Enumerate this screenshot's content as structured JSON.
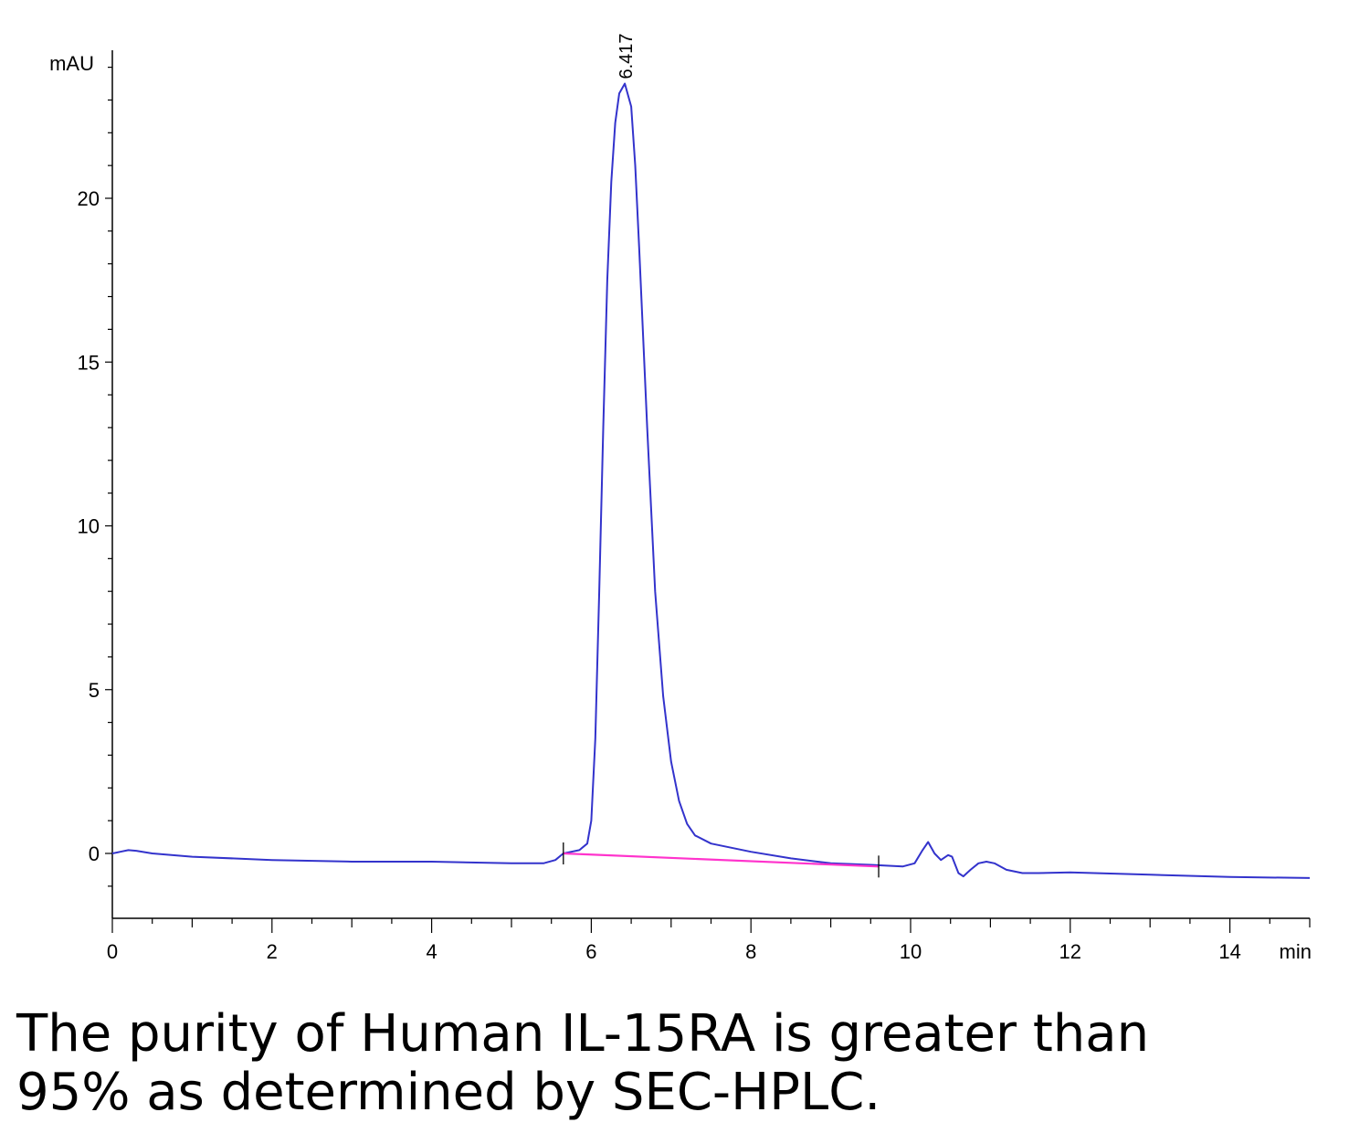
{
  "chart_data": {
    "type": "line",
    "title": "",
    "xlabel": "min",
    "ylabel": "mAU",
    "xlim": [
      0,
      15
    ],
    "ylim": [
      -2,
      24
    ],
    "x_ticks": [
      "0",
      "2",
      "4",
      "6",
      "8",
      "10",
      "12",
      "14"
    ],
    "y_ticks": [
      "0",
      "5",
      "10",
      "15",
      "20"
    ],
    "peak_label": "6.417",
    "grid": false,
    "series": [
      {
        "color": "#3333cc",
        "points": [
          [
            0,
            0
          ],
          [
            0.1,
            0.05
          ],
          [
            0.2,
            0.1
          ],
          [
            0.3,
            0.08
          ],
          [
            0.5,
            0.0
          ],
          [
            1,
            -0.1
          ],
          [
            2,
            -0.2
          ],
          [
            3,
            -0.25
          ],
          [
            4,
            -0.25
          ],
          [
            5,
            -0.3
          ],
          [
            5.4,
            -0.3
          ],
          [
            5.55,
            -0.2
          ],
          [
            5.65,
            0.0
          ],
          [
            5.75,
            0.05
          ],
          [
            5.85,
            0.1
          ],
          [
            5.95,
            0.3
          ],
          [
            6.0,
            1.0
          ],
          [
            6.05,
            3.5
          ],
          [
            6.1,
            8.0
          ],
          [
            6.15,
            13.0
          ],
          [
            6.2,
            17.5
          ],
          [
            6.25,
            20.5
          ],
          [
            6.3,
            22.3
          ],
          [
            6.35,
            23.2
          ],
          [
            6.42,
            23.5
          ],
          [
            6.5,
            22.8
          ],
          [
            6.55,
            21.0
          ],
          [
            6.6,
            18.5
          ],
          [
            6.7,
            13.0
          ],
          [
            6.8,
            8.0
          ],
          [
            6.9,
            4.8
          ],
          [
            7.0,
            2.8
          ],
          [
            7.1,
            1.6
          ],
          [
            7.2,
            0.9
          ],
          [
            7.3,
            0.55
          ],
          [
            7.5,
            0.3
          ],
          [
            8.0,
            0.05
          ],
          [
            8.5,
            -0.15
          ],
          [
            9.0,
            -0.3
          ],
          [
            9.5,
            -0.35
          ],
          [
            9.9,
            -0.4
          ],
          [
            10.05,
            -0.3
          ],
          [
            10.15,
            0.1
          ],
          [
            10.22,
            0.35
          ],
          [
            10.3,
            0.0
          ],
          [
            10.38,
            -0.2
          ],
          [
            10.47,
            -0.05
          ],
          [
            10.52,
            -0.1
          ],
          [
            10.6,
            -0.6
          ],
          [
            10.66,
            -0.7
          ],
          [
            10.75,
            -0.5
          ],
          [
            10.85,
            -0.3
          ],
          [
            10.95,
            -0.25
          ],
          [
            11.05,
            -0.3
          ],
          [
            11.2,
            -0.5
          ],
          [
            11.4,
            -0.6
          ],
          [
            11.6,
            -0.6
          ],
          [
            12.0,
            -0.58
          ],
          [
            13.0,
            -0.65
          ],
          [
            14.0,
            -0.72
          ],
          [
            15.0,
            -0.75
          ]
        ]
      },
      {
        "color": "#ff33cc",
        "points": [
          [
            5.65,
            0.0
          ],
          [
            9.6,
            -0.4
          ]
        ]
      }
    ],
    "markers": [
      {
        "x": 5.65,
        "y": 0.0
      },
      {
        "x": 9.6,
        "y": -0.4
      }
    ]
  },
  "caption": {
    "line1": "The purity of Human IL-15RA is greater than",
    "line2": "95% as determined by SEC-HPLC."
  }
}
